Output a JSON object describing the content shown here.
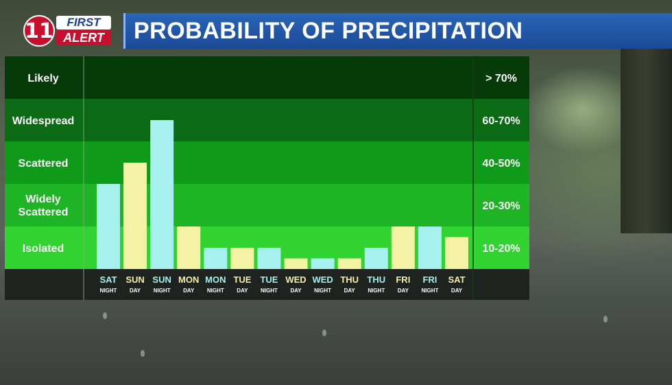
{
  "header": {
    "logo_number": "11",
    "logo_first": "FIRST",
    "logo_alert": "ALERT",
    "title": "PROBABILITY OF PRECIPITATION"
  },
  "colors": {
    "band_likely": "#063a09",
    "band_widespread": "#0a6b14",
    "band_scattered": "#109a1a",
    "band_widely": "#1fb426",
    "band_isolated": "#31d331",
    "bar_night": "#a6f0ef",
    "bar_day": "#f4f2a4",
    "footer": "#1f2320"
  },
  "chart_data": {
    "type": "bar",
    "title": "PROBABILITY OF PRECIPITATION",
    "ylim": [
      0,
      80
    ],
    "bands": [
      {
        "label": "Likely",
        "range": "> 70%",
        "min": 70,
        "max": 80
      },
      {
        "label": "Widespread",
        "range": "60-70%",
        "min": 60,
        "max": 70
      },
      {
        "label": "Scattered",
        "range": "40-50%",
        "min": 40,
        "max": 50
      },
      {
        "label": "Widely Scattered",
        "range": "20-30%",
        "min": 20,
        "max": 30
      },
      {
        "label": "Isolated",
        "range": "10-20%",
        "min": 10,
        "max": 20
      }
    ],
    "categories": [
      {
        "day": "SAT",
        "period": "NIGHT"
      },
      {
        "day": "SUN",
        "period": "DAY"
      },
      {
        "day": "SUN",
        "period": "NIGHT"
      },
      {
        "day": "MON",
        "period": "DAY"
      },
      {
        "day": "MON",
        "period": "NIGHT"
      },
      {
        "day": "TUE",
        "period": "DAY"
      },
      {
        "day": "TUE",
        "period": "NIGHT"
      },
      {
        "day": "WED",
        "period": "DAY"
      },
      {
        "day": "WED",
        "period": "NIGHT"
      },
      {
        "day": "THU",
        "period": "DAY"
      },
      {
        "day": "THU",
        "period": "NIGHT"
      },
      {
        "day": "FRI",
        "period": "DAY"
      },
      {
        "day": "FRI",
        "period": "NIGHT"
      },
      {
        "day": "SAT",
        "period": "DAY"
      }
    ],
    "values": [
      30,
      40,
      60,
      20,
      10,
      10,
      10,
      5,
      5,
      5,
      10,
      20,
      20,
      15
    ],
    "grid": false,
    "legend": "none"
  }
}
